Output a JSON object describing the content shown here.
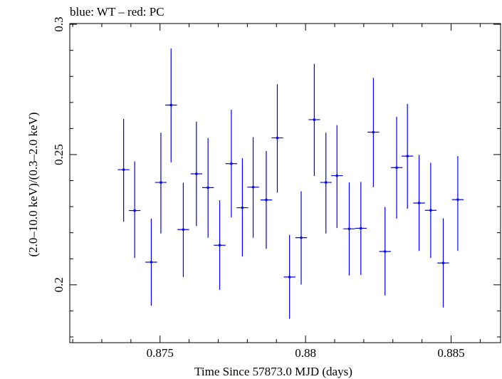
{
  "chart_data": {
    "type": "scatter",
    "title": "blue: WT – red: PC",
    "xlabel": "Time Since 57873.0 MJD (days)",
    "ylabel": "(2.0–10.0 keV)/(0.3–2.0 keV)",
    "xlim": [
      0.8719,
      0.8867
    ],
    "ylim": [
      0.1778,
      0.3003
    ],
    "x_ticks": [
      0.875,
      0.88,
      0.885
    ],
    "x_tick_labels": [
      "0.875",
      "0.88",
      "0.885"
    ],
    "y_ticks": [
      0.2,
      0.25,
      0.3
    ],
    "y_tick_labels": [
      "0.2",
      "0.25",
      "0.3"
    ],
    "grid": false,
    "series": [
      {
        "color": "#0000ee",
        "points": [
          {
            "x": 0.87375,
            "xerr": 0.0002,
            "y": 0.2442,
            "ylo": 0.2242,
            "yhi": 0.2637
          },
          {
            "x": 0.87413,
            "xerr": 0.0002,
            "y": 0.2285,
            "ylo": 0.2103,
            "yhi": 0.2474
          },
          {
            "x": 0.8747,
            "xerr": 0.0002,
            "y": 0.2087,
            "ylo": 0.192,
            "yhi": 0.2254
          },
          {
            "x": 0.87503,
            "xerr": 0.0002,
            "y": 0.2393,
            "ylo": 0.2197,
            "yhi": 0.2584
          },
          {
            "x": 0.87538,
            "xerr": 0.0002,
            "y": 0.269,
            "ylo": 0.247,
            "yhi": 0.2907
          },
          {
            "x": 0.8758,
            "xerr": 0.0002,
            "y": 0.2212,
            "ylo": 0.203,
            "yhi": 0.2392
          },
          {
            "x": 0.87625,
            "xerr": 0.0002,
            "y": 0.2426,
            "ylo": 0.2225,
            "yhi": 0.2626
          },
          {
            "x": 0.87665,
            "xerr": 0.0002,
            "y": 0.2373,
            "ylo": 0.2181,
            "yhi": 0.2563
          },
          {
            "x": 0.87705,
            "xerr": 0.0002,
            "y": 0.2152,
            "ylo": 0.1981,
            "yhi": 0.2325
          },
          {
            "x": 0.87745,
            "xerr": 0.0002,
            "y": 0.2465,
            "ylo": 0.2259,
            "yhi": 0.2672
          },
          {
            "x": 0.87783,
            "xerr": 0.0002,
            "y": 0.2296,
            "ylo": 0.2109,
            "yhi": 0.2486
          },
          {
            "x": 0.8782,
            "xerr": 0.0002,
            "y": 0.2375,
            "ylo": 0.2181,
            "yhi": 0.2567
          },
          {
            "x": 0.87865,
            "xerr": 0.0002,
            "y": 0.2326,
            "ylo": 0.2138,
            "yhi": 0.2514
          },
          {
            "x": 0.87903,
            "xerr": 0.0002,
            "y": 0.2564,
            "ylo": 0.2354,
            "yhi": 0.277
          },
          {
            "x": 0.87945,
            "xerr": 0.0002,
            "y": 0.203,
            "ylo": 0.187,
            "yhi": 0.2192
          },
          {
            "x": 0.87985,
            "xerr": 0.0002,
            "y": 0.2181,
            "ylo": 0.2001,
            "yhi": 0.2359
          },
          {
            "x": 0.8803,
            "xerr": 0.0002,
            "y": 0.2634,
            "ylo": 0.2418,
            "yhi": 0.2848
          },
          {
            "x": 0.8807,
            "xerr": 0.0002,
            "y": 0.2393,
            "ylo": 0.2197,
            "yhi": 0.2584
          },
          {
            "x": 0.88108,
            "xerr": 0.0002,
            "y": 0.2419,
            "ylo": 0.2218,
            "yhi": 0.2613
          },
          {
            "x": 0.8815,
            "xerr": 0.0002,
            "y": 0.2215,
            "ylo": 0.2036,
            "yhi": 0.2393
          },
          {
            "x": 0.8819,
            "xerr": 0.0002,
            "y": 0.2217,
            "ylo": 0.2038,
            "yhi": 0.2395
          },
          {
            "x": 0.88233,
            "xerr": 0.0002,
            "y": 0.2586,
            "ylo": 0.2375,
            "yhi": 0.2794
          },
          {
            "x": 0.88273,
            "xerr": 0.0002,
            "y": 0.2128,
            "ylo": 0.1959,
            "yhi": 0.2299
          },
          {
            "x": 0.88313,
            "xerr": 0.0002,
            "y": 0.245,
            "ylo": 0.2254,
            "yhi": 0.2645
          },
          {
            "x": 0.8835,
            "xerr": 0.0002,
            "y": 0.2494,
            "ylo": 0.2292,
            "yhi": 0.2694
          },
          {
            "x": 0.8839,
            "xerr": 0.0002,
            "y": 0.2314,
            "ylo": 0.213,
            "yhi": 0.2499
          },
          {
            "x": 0.8843,
            "xerr": 0.0002,
            "y": 0.2286,
            "ylo": 0.2103,
            "yhi": 0.2468
          },
          {
            "x": 0.88473,
            "xerr": 0.0002,
            "y": 0.2084,
            "ylo": 0.1913,
            "yhi": 0.2255
          },
          {
            "x": 0.88523,
            "xerr": 0.0002,
            "y": 0.2327,
            "ylo": 0.213,
            "yhi": 0.2494
          }
        ]
      }
    ]
  }
}
